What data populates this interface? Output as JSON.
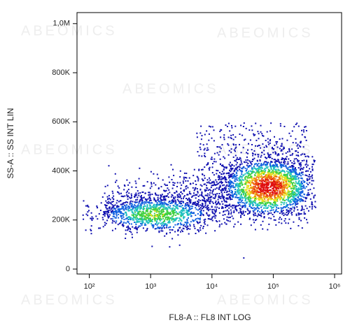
{
  "chart_data": {
    "type": "density-scatter",
    "x_label": "FL8-A :: FL8 INT LOG",
    "y_label": "SS-A :: SS INT LIN",
    "watermark": "ABEOMICS",
    "x_log": true,
    "xlim": [
      63,
      1300000
    ],
    "xticks": [
      {
        "value": 100,
        "label": "10²"
      },
      {
        "value": 1000,
        "label": "10³"
      },
      {
        "value": 10000,
        "label": "10⁴"
      },
      {
        "value": 100000,
        "label": "10⁵"
      },
      {
        "value": 1000000,
        "label": "10⁶"
      }
    ],
    "ylim": [
      -20000,
      1045000
    ],
    "yticks": [
      0,
      {
        "value": 200000,
        "label": "200K"
      },
      {
        "value": 400000,
        "label": "400K"
      },
      {
        "value": 600000,
        "label": "600K"
      },
      {
        "value": 800000,
        "label": "800K"
      },
      {
        "value": 1000000,
        "label": "1,0M"
      }
    ]
  }
}
